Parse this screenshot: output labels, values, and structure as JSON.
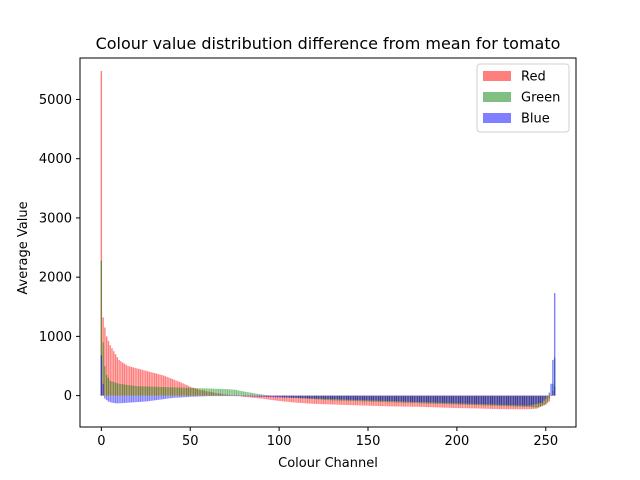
{
  "chart_data": {
    "type": "bar",
    "title": "Colour value distribution difference from mean for tomato",
    "xlabel": "Colour Channel",
    "ylabel": "Average Value",
    "xlim": [
      -12,
      267
    ],
    "ylim": [
      -530,
      5700
    ],
    "xticks": [
      0,
      50,
      100,
      150,
      200,
      250
    ],
    "yticks": [
      0,
      1000,
      2000,
      3000,
      4000,
      5000
    ],
    "legend_position": "top-right",
    "grid": false,
    "series": [
      {
        "name": "Red",
        "color": "#ff0000",
        "opacity": 0.5,
        "keypoints": [
          [
            0,
            5480
          ],
          [
            1,
            1320
          ],
          [
            2,
            1150
          ],
          [
            3,
            1000
          ],
          [
            5,
            850
          ],
          [
            8,
            700
          ],
          [
            10,
            600
          ],
          [
            15,
            500
          ],
          [
            20,
            460
          ],
          [
            25,
            420
          ],
          [
            30,
            380
          ],
          [
            35,
            340
          ],
          [
            40,
            280
          ],
          [
            45,
            220
          ],
          [
            50,
            150
          ],
          [
            55,
            100
          ],
          [
            60,
            70
          ],
          [
            65,
            40
          ],
          [
            70,
            20
          ],
          [
            75,
            0
          ],
          [
            80,
            -20
          ],
          [
            90,
            -50
          ],
          [
            100,
            -90
          ],
          [
            110,
            -120
          ],
          [
            120,
            -140
          ],
          [
            130,
            -150
          ],
          [
            140,
            -160
          ],
          [
            150,
            -170
          ],
          [
            160,
            -180
          ],
          [
            170,
            -185
          ],
          [
            180,
            -190
          ],
          [
            190,
            -200
          ],
          [
            200,
            -210
          ],
          [
            210,
            -215
          ],
          [
            220,
            -225
          ],
          [
            230,
            -230
          ],
          [
            240,
            -230
          ],
          [
            245,
            -220
          ],
          [
            250,
            -150
          ],
          [
            252,
            -100
          ],
          [
            253,
            0
          ],
          [
            254,
            80
          ],
          [
            255,
            150
          ]
        ]
      },
      {
        "name": "Green",
        "color": "#008000",
        "opacity": 0.5,
        "keypoints": [
          [
            0,
            2280
          ],
          [
            1,
            900
          ],
          [
            2,
            500
          ],
          [
            3,
            350
          ],
          [
            5,
            250
          ],
          [
            10,
            200
          ],
          [
            15,
            180
          ],
          [
            20,
            160
          ],
          [
            30,
            150
          ],
          [
            40,
            140
          ],
          [
            50,
            130
          ],
          [
            60,
            120
          ],
          [
            70,
            110
          ],
          [
            75,
            100
          ],
          [
            80,
            70
          ],
          [
            90,
            20
          ],
          [
            100,
            -20
          ],
          [
            110,
            -40
          ],
          [
            120,
            -60
          ],
          [
            130,
            -80
          ],
          [
            140,
            -90
          ],
          [
            150,
            -100
          ],
          [
            160,
            -110
          ],
          [
            170,
            -120
          ],
          [
            180,
            -130
          ],
          [
            190,
            -140
          ],
          [
            200,
            -150
          ],
          [
            210,
            -160
          ],
          [
            220,
            -170
          ],
          [
            230,
            -180
          ],
          [
            240,
            -190
          ],
          [
            245,
            -200
          ],
          [
            250,
            -150
          ],
          [
            253,
            0
          ],
          [
            254,
            200
          ],
          [
            255,
            640
          ]
        ]
      },
      {
        "name": "Blue",
        "color": "#0000ff",
        "opacity": 0.5,
        "keypoints": [
          [
            0,
            680
          ],
          [
            1,
            200
          ],
          [
            2,
            -50
          ],
          [
            4,
            -100
          ],
          [
            6,
            -120
          ],
          [
            8,
            -130
          ],
          [
            10,
            -130
          ],
          [
            15,
            -120
          ],
          [
            20,
            -110
          ],
          [
            25,
            -100
          ],
          [
            30,
            -80
          ],
          [
            35,
            -60
          ],
          [
            40,
            -40
          ],
          [
            45,
            -30
          ],
          [
            50,
            -20
          ],
          [
            60,
            -10
          ],
          [
            70,
            0
          ],
          [
            80,
            -10
          ],
          [
            90,
            -20
          ],
          [
            100,
            -30
          ],
          [
            110,
            -40
          ],
          [
            120,
            -50
          ],
          [
            130,
            -60
          ],
          [
            140,
            -70
          ],
          [
            150,
            -80
          ],
          [
            160,
            -90
          ],
          [
            170,
            -100
          ],
          [
            180,
            -110
          ],
          [
            190,
            -120
          ],
          [
            200,
            -130
          ],
          [
            210,
            -140
          ],
          [
            220,
            -150
          ],
          [
            230,
            -160
          ],
          [
            240,
            -170
          ],
          [
            248,
            -120
          ],
          [
            250,
            -50
          ],
          [
            252,
            50
          ],
          [
            253,
            200
          ],
          [
            254,
            600
          ],
          [
            255,
            1730
          ]
        ]
      }
    ]
  }
}
